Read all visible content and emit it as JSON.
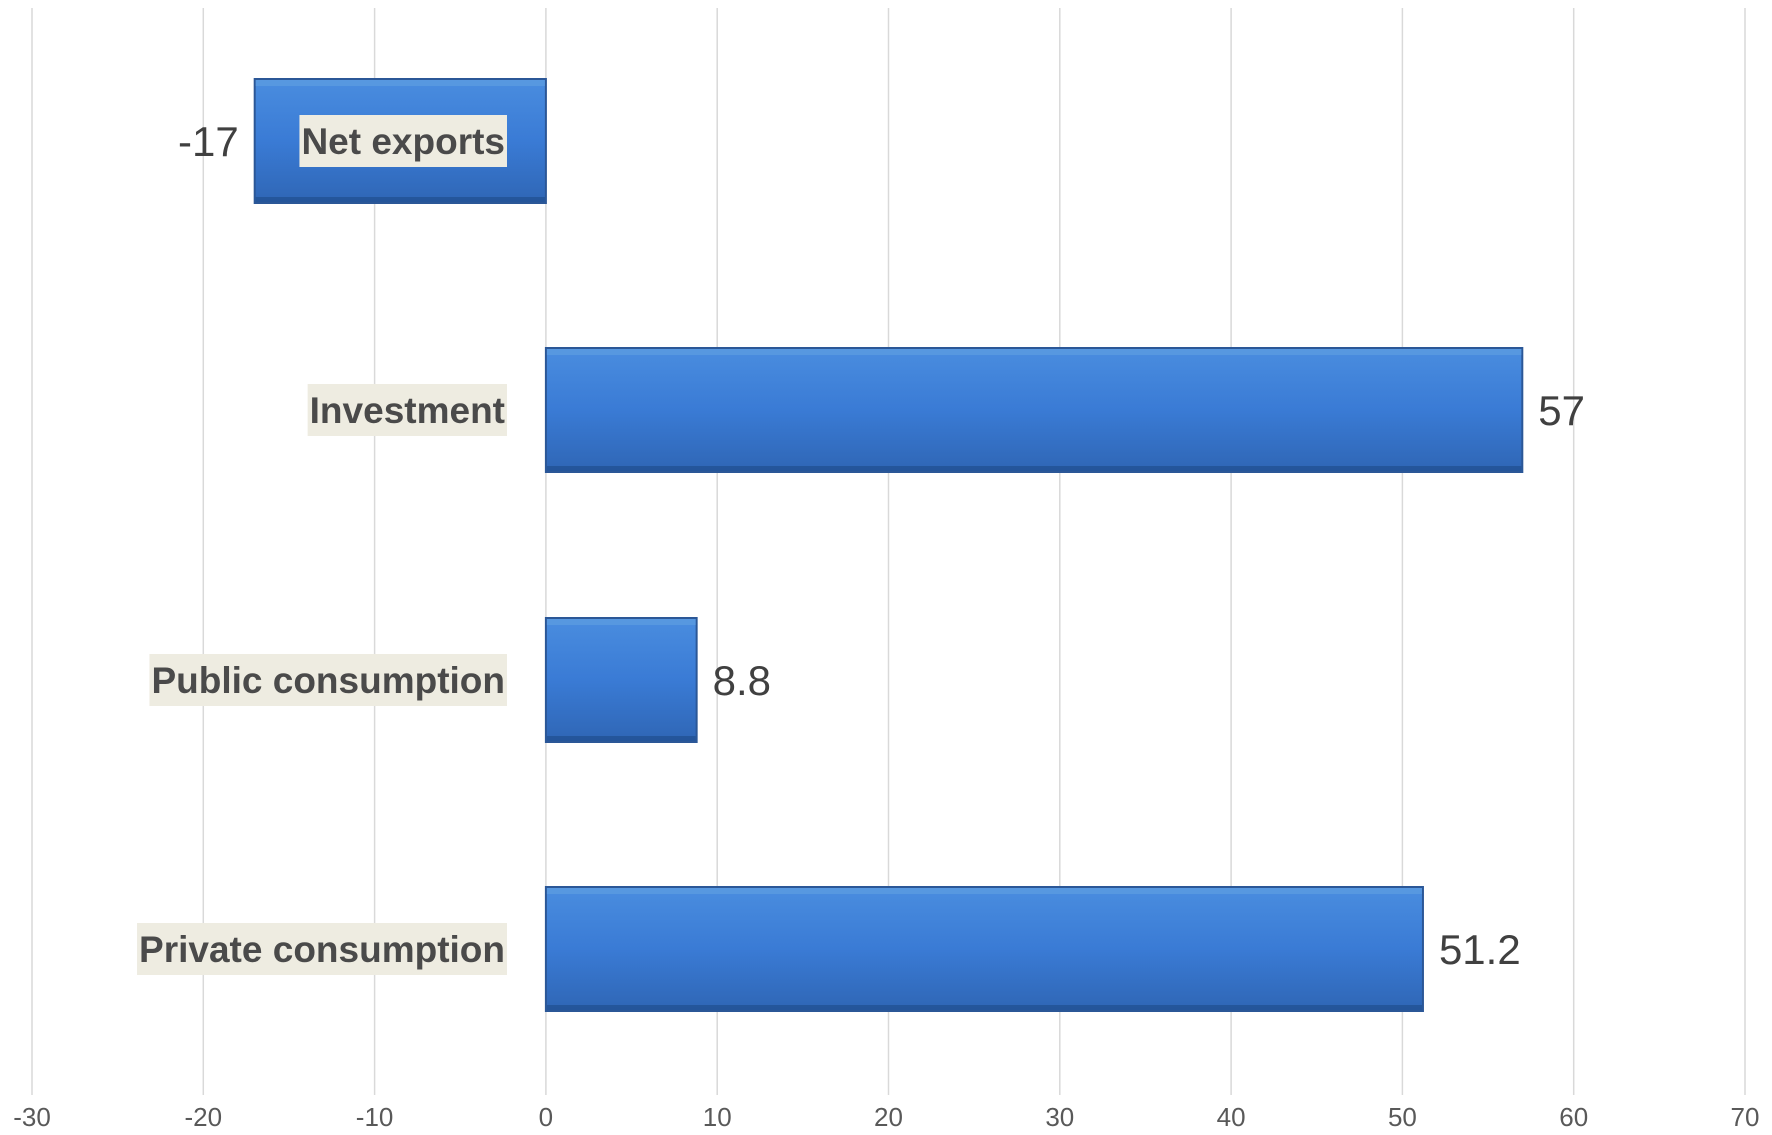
{
  "chart_data": {
    "type": "bar",
    "orientation": "horizontal",
    "categories": [
      "Net exports",
      "Investment",
      "Public consumption",
      "Private consumption"
    ],
    "values": [
      -17,
      57,
      8.8,
      51.2
    ],
    "data_labels": [
      "-17",
      "57",
      "8.8",
      "51.2"
    ],
    "xlim": [
      -30,
      70
    ],
    "x_ticks": [
      -30,
      -20,
      -10,
      0,
      10,
      20,
      30,
      40,
      50,
      60,
      70
    ],
    "x_tick_labels": [
      "-30",
      "-20",
      "-10",
      "0",
      "10",
      "20",
      "30",
      "40",
      "50",
      "60",
      "70"
    ],
    "grid": true,
    "legend": "none",
    "colors": {
      "bar": "#3a7bd5",
      "bar_edge": "#2b5797",
      "category_label_bg": "#eeece1",
      "gridline": "#d9d9d9"
    }
  }
}
